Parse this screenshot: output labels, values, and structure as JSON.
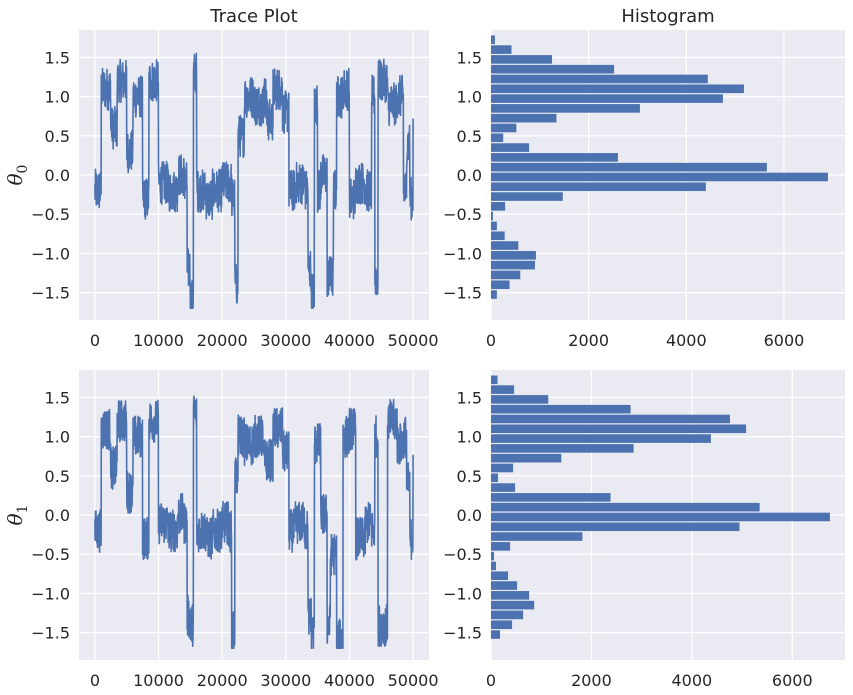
{
  "chart_data": [
    {
      "type": "line",
      "title": "Trace Plot",
      "ylabel": "θ0",
      "xlim": [
        -2500,
        52500
      ],
      "ylim": [
        -1.85,
        1.85
      ],
      "xticks": [
        0,
        10000,
        20000,
        30000,
        40000,
        50000
      ],
      "yticks": [
        -1.5,
        -1.0,
        -0.5,
        0.0,
        0.5,
        1.0,
        1.5
      ],
      "n_samples": 50000,
      "x": [
        0,
        1000,
        2500,
        3500,
        5000,
        6000,
        7500,
        8500,
        10000,
        11500,
        13000,
        14000,
        14500,
        15000,
        15500,
        16000,
        17500,
        18500,
        20000,
        21500,
        22000,
        22500,
        23500,
        25000,
        26500,
        27000,
        28000,
        29500,
        30500,
        31500,
        33000,
        33500,
        34000,
        34500,
        35000,
        35500,
        36500,
        37500,
        38000,
        39000,
        40000,
        41000,
        42500,
        43500,
        44000,
        44500,
        46000,
        47500,
        48500,
        49000,
        49500,
        50000
      ],
      "y": [
        -0.2,
        1.1,
        0.6,
        1.2,
        0.3,
        1.0,
        -0.3,
        1.2,
        -0.1,
        -0.2,
        0.0,
        -0.1,
        -1.2,
        -1.6,
        1.3,
        -0.2,
        -0.3,
        -0.2,
        -0.1,
        -0.3,
        -1.4,
        0.5,
        1.0,
        0.9,
        1.0,
        0.7,
        1.1,
        0.8,
        -0.2,
        -0.1,
        -0.2,
        -1.2,
        -1.5,
        0.9,
        -0.2,
        0.0,
        -1.3,
        -0.2,
        1.0,
        1.1,
        -0.3,
        -0.1,
        -0.2,
        1.0,
        -1.3,
        1.2,
        0.9,
        1.0,
        -0.2,
        0.4,
        -0.3,
        0.9
      ],
      "series": [
        {
          "name": "",
          "color": "#4c72b0"
        }
      ]
    },
    {
      "type": "bar",
      "orientation": "horizontal",
      "title": "Histogram",
      "ylabel": "",
      "xlim": [
        0,
        7250
      ],
      "ylim": [
        -1.85,
        1.85
      ],
      "xticks": [
        0,
        2000,
        4000,
        6000
      ],
      "yticks": [
        -1.5,
        -1.0,
        -0.5,
        0.0,
        0.5,
        1.0,
        1.5
      ],
      "bin_centers": [
        -1.65,
        -1.525,
        -1.4,
        -1.275,
        -1.15,
        -1.025,
        -0.9,
        -0.775,
        -0.65,
        -0.525,
        -0.4,
        -0.275,
        -0.15,
        -0.025,
        0.1,
        0.225,
        0.35,
        0.475,
        0.6,
        0.725,
        0.85,
        0.975,
        1.1,
        1.225,
        1.35,
        1.475,
        1.6,
        1.725
      ],
      "bin_width": 0.125,
      "counts": [
        0,
        120,
        380,
        600,
        900,
        920,
        560,
        280,
        120,
        40,
        290,
        1470,
        4400,
        6900,
        5650,
        2600,
        780,
        250,
        520,
        1340,
        3050,
        4750,
        5180,
        4440,
        2520,
        1250,
        420,
        80
      ],
      "series": [
        {
          "name": "",
          "color": "#4c72b0"
        }
      ]
    },
    {
      "type": "line",
      "title": "",
      "ylabel": "θ1",
      "xlim": [
        -2500,
        52500
      ],
      "ylim": [
        -1.85,
        1.85
      ],
      "xticks": [
        0,
        10000,
        20000,
        30000,
        40000,
        50000
      ],
      "yticks": [
        -1.5,
        -1.0,
        -0.5,
        0.0,
        0.5,
        1.0,
        1.5
      ],
      "n_samples": 50000,
      "x": [
        0,
        1000,
        2500,
        3500,
        5000,
        6000,
        7500,
        8500,
        10000,
        11500,
        13000,
        14000,
        14500,
        15000,
        15500,
        16000,
        17500,
        18500,
        20000,
        21000,
        21500,
        22000,
        22500,
        23500,
        25000,
        26500,
        28000,
        29500,
        30500,
        31500,
        33000,
        33500,
        34000,
        34500,
        35500,
        36500,
        37000,
        38000,
        39000,
        40000,
        41000,
        42500,
        43500,
        44000,
        44500,
        46000,
        47500,
        48500,
        49000,
        49500,
        50000
      ],
      "y": [
        -0.2,
        1.1,
        0.6,
        1.2,
        0.3,
        1.0,
        -0.3,
        1.2,
        -0.1,
        -0.2,
        0.0,
        -0.1,
        -1.3,
        -1.4,
        1.3,
        -0.2,
        -0.3,
        -0.2,
        -0.1,
        -0.2,
        -1.5,
        0.5,
        1.0,
        0.9,
        1.0,
        0.7,
        1.1,
        0.8,
        -0.2,
        -0.1,
        -0.2,
        -1.3,
        -1.5,
        0.9,
        0.0,
        -1.4,
        -0.5,
        -1.6,
        1.0,
        1.1,
        -0.3,
        -0.1,
        -0.2,
        1.0,
        -1.4,
        1.2,
        0.9,
        1.0,
        0.4,
        -0.3,
        0.9
      ],
      "series": [
        {
          "name": "",
          "color": "#4c72b0"
        }
      ]
    },
    {
      "type": "bar",
      "orientation": "horizontal",
      "title": "",
      "ylabel": "",
      "xlim": [
        0,
        7050
      ],
      "ylim": [
        -1.85,
        1.85
      ],
      "xticks": [
        0,
        2000,
        4000,
        6000
      ],
      "yticks": [
        -1.5,
        -1.0,
        -0.5,
        0.0,
        0.5,
        1.0,
        1.5
      ],
      "bin_centers": [
        -1.65,
        -1.525,
        -1.4,
        -1.275,
        -1.15,
        -1.025,
        -0.9,
        -0.775,
        -0.65,
        -0.525,
        -0.4,
        -0.275,
        -0.15,
        -0.025,
        0.1,
        0.225,
        0.35,
        0.475,
        0.6,
        0.725,
        0.85,
        0.975,
        1.1,
        1.225,
        1.35,
        1.475,
        1.6,
        1.725
      ],
      "bin_width": 0.125,
      "counts": [
        0,
        180,
        420,
        640,
        860,
        760,
        520,
        340,
        100,
        60,
        380,
        1820,
        4950,
        6750,
        5350,
        2380,
        480,
        140,
        440,
        1400,
        2840,
        4380,
        5080,
        4760,
        2780,
        1140,
        460,
        130
      ],
      "series": [
        {
          "name": "",
          "color": "#4c72b0"
        }
      ]
    }
  ],
  "style": {
    "axes_bg": "#eaeaf2",
    "grid": "#ffffff",
    "line_color": "#4c72b0",
    "text": "#262626"
  }
}
